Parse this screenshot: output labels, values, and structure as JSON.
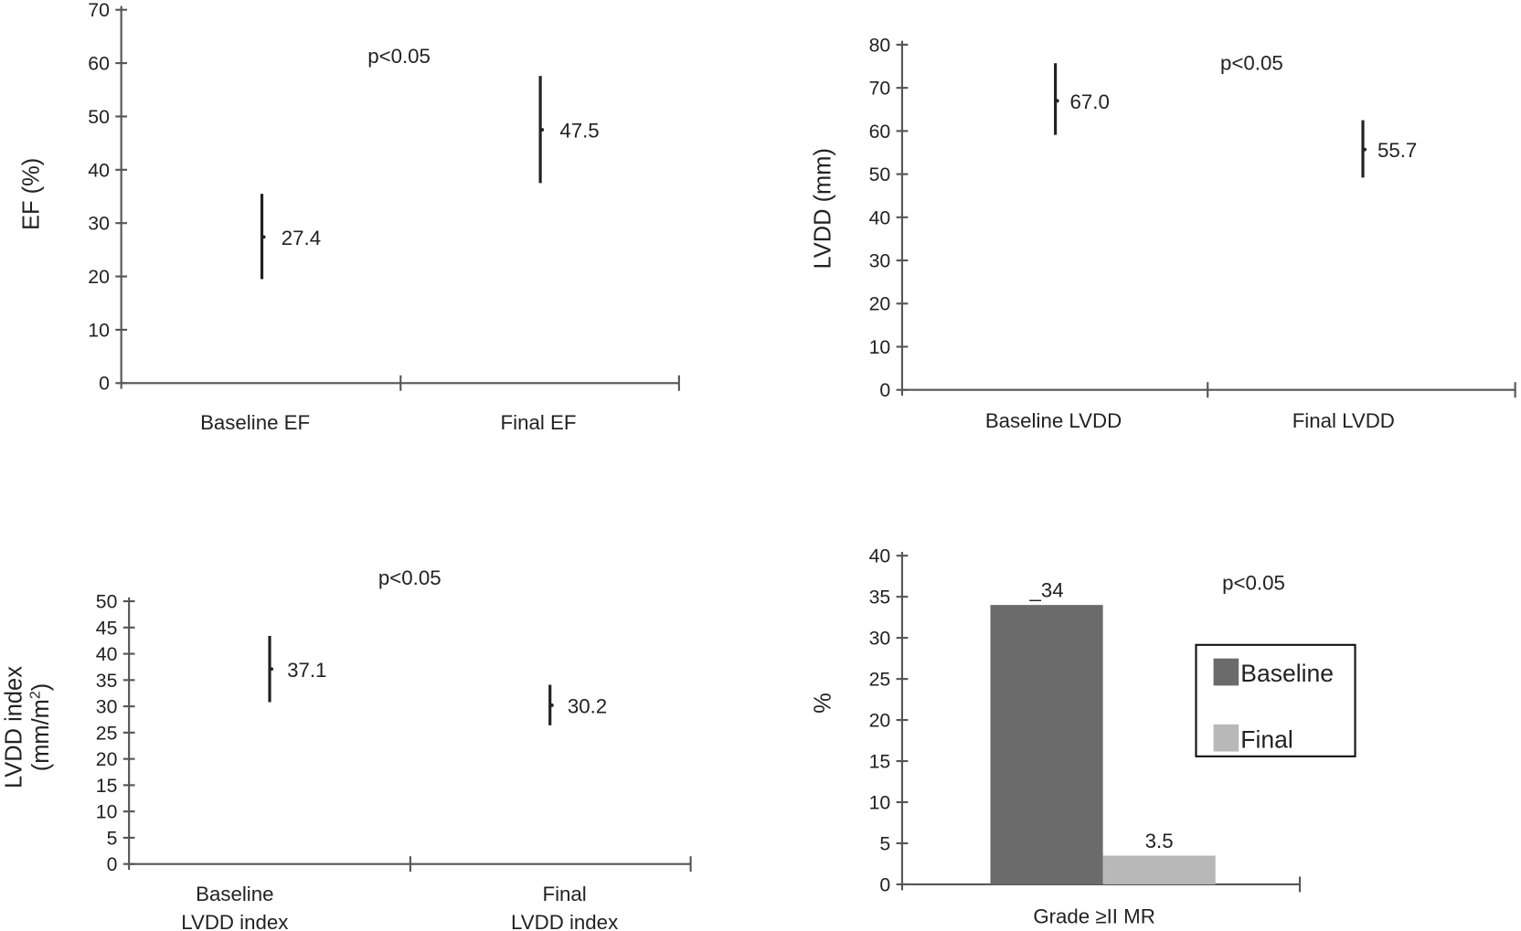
{
  "chart_data": [
    {
      "type": "range",
      "ylabel": "EF (%)",
      "ylim": [
        0,
        70
      ],
      "yticks": [
        0,
        10,
        20,
        30,
        40,
        50,
        60,
        70
      ],
      "categories": [
        [
          "Baseline EF"
        ],
        [
          "Final EF"
        ]
      ],
      "series": [
        {
          "name": "Baseline EF",
          "mean": 27.4,
          "low": 19.5,
          "high": 35.5,
          "label": "27.4"
        },
        {
          "name": "Final EF",
          "mean": 47.5,
          "low": 37.5,
          "high": 57.6,
          "label": "47.5"
        }
      ],
      "annotation": "p<0.05"
    },
    {
      "type": "range",
      "ylabel": "LVDD (mm)",
      "ylim": [
        0,
        80
      ],
      "yticks": [
        0,
        10,
        20,
        30,
        40,
        50,
        60,
        70,
        80
      ],
      "categories": [
        [
          "Baseline LVDD"
        ],
        [
          "Final LVDD"
        ]
      ],
      "series": [
        {
          "name": "Baseline LVDD",
          "mean": 67.0,
          "low": 59.1,
          "high": 75.7,
          "label": "67.0"
        },
        {
          "name": "Final LVDD",
          "mean": 55.7,
          "low": 49.2,
          "high": 62.5,
          "label": "55.7"
        }
      ],
      "annotation": "p<0.05"
    },
    {
      "type": "range",
      "ylabel": [
        "LVDD index",
        "(mm/m",
        "2",
        ")"
      ],
      "ylim": [
        0,
        50
      ],
      "yticks": [
        0,
        5,
        10,
        15,
        20,
        25,
        30,
        35,
        40,
        45,
        50
      ],
      "categories": [
        [
          "Baseline",
          "LVDD index"
        ],
        [
          "Final",
          "LVDD index"
        ]
      ],
      "series": [
        {
          "name": "Baseline LVDD index",
          "mean": 37.1,
          "low": 30.8,
          "high": 43.4,
          "label": "37.1"
        },
        {
          "name": "Final LVDD index",
          "mean": 30.2,
          "low": 26.4,
          "high": 34.1,
          "label": "30.2"
        }
      ],
      "annotation": "p<0.05"
    },
    {
      "type": "bar",
      "ylabel": "%",
      "ylim": [
        0,
        40
      ],
      "yticks": [
        0,
        5,
        10,
        15,
        20,
        25,
        30,
        35,
        40
      ],
      "categories": [
        "Grade ≥II MR"
      ],
      "series": [
        {
          "name": "Baseline",
          "values": [
            34
          ],
          "label": "_34",
          "color": "#6b6b6b"
        },
        {
          "name": "Final",
          "values": [
            3.5
          ],
          "label": "3.5",
          "color": "#b8b8b8"
        }
      ],
      "legend": {
        "position": "right",
        "entries": [
          "Baseline",
          "Final"
        ]
      },
      "annotation": "p<0.05"
    }
  ]
}
